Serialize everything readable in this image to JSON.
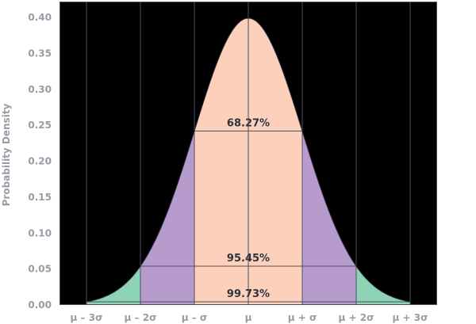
{
  "chart_data": {
    "type": "area",
    "title": "",
    "ylabel": "Probability Density",
    "xlabel": "",
    "distribution": "standard-normal",
    "mean": 0,
    "sd": 1,
    "xlim": [
      -3,
      3
    ],
    "ylim": [
      0,
      0.4
    ],
    "y_ticks": [
      "0.00",
      "0.05",
      "0.10",
      "0.15",
      "0.20",
      "0.25",
      "0.30",
      "0.35",
      "0.40"
    ],
    "x_ticks": [
      {
        "x": -3,
        "label": "μ – 3σ"
      },
      {
        "x": -2,
        "label": "μ – 2σ"
      },
      {
        "x": -1,
        "label": "μ – σ"
      },
      {
        "x": 0,
        "label": "μ"
      },
      {
        "x": 1,
        "label": "μ + σ"
      },
      {
        "x": 2,
        "label": "μ + 2σ"
      },
      {
        "x": 3,
        "label": "μ + 3σ"
      }
    ],
    "regions": [
      {
        "from": -3,
        "to": 3,
        "color": "#8fd3b6"
      },
      {
        "from": -2,
        "to": 2,
        "color": "#b79bcd"
      },
      {
        "from": -1,
        "to": 1,
        "color": "#fdd0bb"
      }
    ],
    "intervals": [
      {
        "label": "68.27%",
        "from": -1,
        "to": 1,
        "y": 0.242
      },
      {
        "label": "95.45%",
        "from": -2,
        "to": 2,
        "y": 0.054
      },
      {
        "label": "99.73%",
        "from": -3,
        "to": 3,
        "y": 0.0044
      }
    ],
    "grid": true,
    "colors": {
      "background": "#000000",
      "grid": "#4b5063",
      "curve": "#2b2b3a",
      "text": "#9a9ba5",
      "label": "#2e3440"
    }
  }
}
